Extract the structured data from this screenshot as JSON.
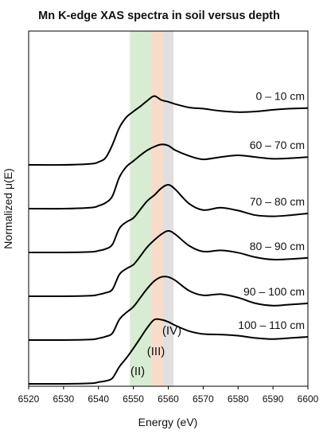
{
  "chart_data": {
    "type": "line",
    "title": "Mn K-edge XAS spectra in soil versus depth",
    "xlabel": "Energy (eV)",
    "ylabel": "Normalized μ(E)",
    "xlim": [
      6520,
      6600
    ],
    "xticks": [
      6520,
      6530,
      6540,
      6550,
      6560,
      6570,
      6580,
      6590,
      6600
    ],
    "y_tick_labels": false,
    "grid": false,
    "legend": "none",
    "series_color": "#000000",
    "bands": [
      {
        "label": "(II)",
        "x_range": [
          6549,
          6555
        ],
        "color": "#d8ecd3"
      },
      {
        "label": "(III)",
        "x_range": [
          6555,
          6558.5
        ],
        "color": "#f8dccb"
      },
      {
        "label": "(IV)",
        "x_range": [
          6558.5,
          6561.5
        ],
        "color": "#e0e0e0"
      }
    ],
    "series": [
      {
        "name": "0 – 10 cm",
        "offset": 5,
        "x": [
          6520,
          6530,
          6538,
          6540,
          6542,
          6544,
          6546,
          6548,
          6550,
          6552,
          6554,
          6556,
          6558,
          6560,
          6562,
          6566,
          6570,
          6575,
          6580,
          6585,
          6590,
          6595,
          6600
        ],
        "y": [
          0.0,
          0.0,
          0.02,
          0.05,
          0.12,
          0.35,
          0.65,
          0.83,
          0.93,
          1.02,
          1.12,
          1.2,
          1.13,
          1.1,
          1.06,
          1.0,
          0.98,
          0.94,
          0.92,
          0.93,
          0.96,
          0.98,
          0.99
        ]
      },
      {
        "name": "60 – 70 cm",
        "offset": 4,
        "x": [
          6520,
          6530,
          6538,
          6540,
          6542,
          6544,
          6546,
          6548,
          6550,
          6552,
          6554,
          6556,
          6558,
          6560,
          6562,
          6566,
          6570,
          6575,
          6580,
          6585,
          6590,
          6595,
          6600
        ],
        "y": [
          0.0,
          0.0,
          0.02,
          0.05,
          0.1,
          0.22,
          0.55,
          0.73,
          0.83,
          0.93,
          1.02,
          1.08,
          1.12,
          1.1,
          1.02,
          0.92,
          0.86,
          0.9,
          0.93,
          0.9,
          0.87,
          0.88,
          0.9
        ]
      },
      {
        "name": "70 – 80 cm",
        "offset": 3,
        "x": [
          6520,
          6530,
          6538,
          6540,
          6542,
          6544,
          6546,
          6548,
          6550,
          6552,
          6554,
          6556,
          6558,
          6560,
          6562,
          6566,
          6570,
          6575,
          6580,
          6585,
          6590,
          6595,
          6600
        ],
        "y": [
          0.0,
          0.0,
          0.01,
          0.03,
          0.06,
          0.14,
          0.42,
          0.53,
          0.6,
          0.75,
          0.9,
          1.0,
          1.12,
          1.18,
          1.1,
          0.85,
          0.74,
          0.78,
          0.73,
          0.65,
          0.63,
          0.65,
          0.68
        ]
      },
      {
        "name": "80 – 90 cm",
        "offset": 2,
        "x": [
          6520,
          6530,
          6538,
          6540,
          6542,
          6544,
          6546,
          6548,
          6550,
          6552,
          6554,
          6556,
          6558,
          6560,
          6562,
          6566,
          6570,
          6575,
          6580,
          6585,
          6590,
          6595,
          6600
        ],
        "y": [
          0.0,
          0.0,
          0.01,
          0.03,
          0.06,
          0.12,
          0.38,
          0.48,
          0.55,
          0.7,
          0.86,
          0.98,
          1.08,
          1.14,
          1.08,
          0.88,
          0.78,
          0.8,
          0.76,
          0.68,
          0.64,
          0.65,
          0.67
        ]
      },
      {
        "name": "90 – 100 cm",
        "offset": 1,
        "x": [
          6520,
          6530,
          6538,
          6540,
          6542,
          6544,
          6546,
          6548,
          6550,
          6552,
          6554,
          6556,
          6558,
          6560,
          6562,
          6566,
          6570,
          6575,
          6580,
          6585,
          6590,
          6595,
          6600
        ],
        "y": [
          0.0,
          0.0,
          0.01,
          0.03,
          0.06,
          0.12,
          0.36,
          0.48,
          0.58,
          0.74,
          0.9,
          1.03,
          1.1,
          1.1,
          1.04,
          0.86,
          0.78,
          0.8,
          0.74,
          0.64,
          0.6,
          0.62,
          0.64
        ]
      },
      {
        "name": "100 – 110 cm",
        "offset": 0,
        "x": [
          6520,
          6530,
          6538,
          6540,
          6542,
          6544,
          6546,
          6548,
          6550,
          6552,
          6554,
          6556,
          6558,
          6560,
          6562,
          6566,
          6570,
          6575,
          6580,
          6585,
          6590,
          6595,
          6600
        ],
        "y": [
          0.0,
          0.0,
          0.01,
          0.03,
          0.05,
          0.1,
          0.3,
          0.45,
          0.62,
          0.8,
          0.98,
          1.12,
          1.12,
          1.08,
          1.02,
          0.92,
          0.87,
          0.86,
          0.84,
          0.8,
          0.78,
          0.8,
          0.82
        ]
      }
    ]
  }
}
